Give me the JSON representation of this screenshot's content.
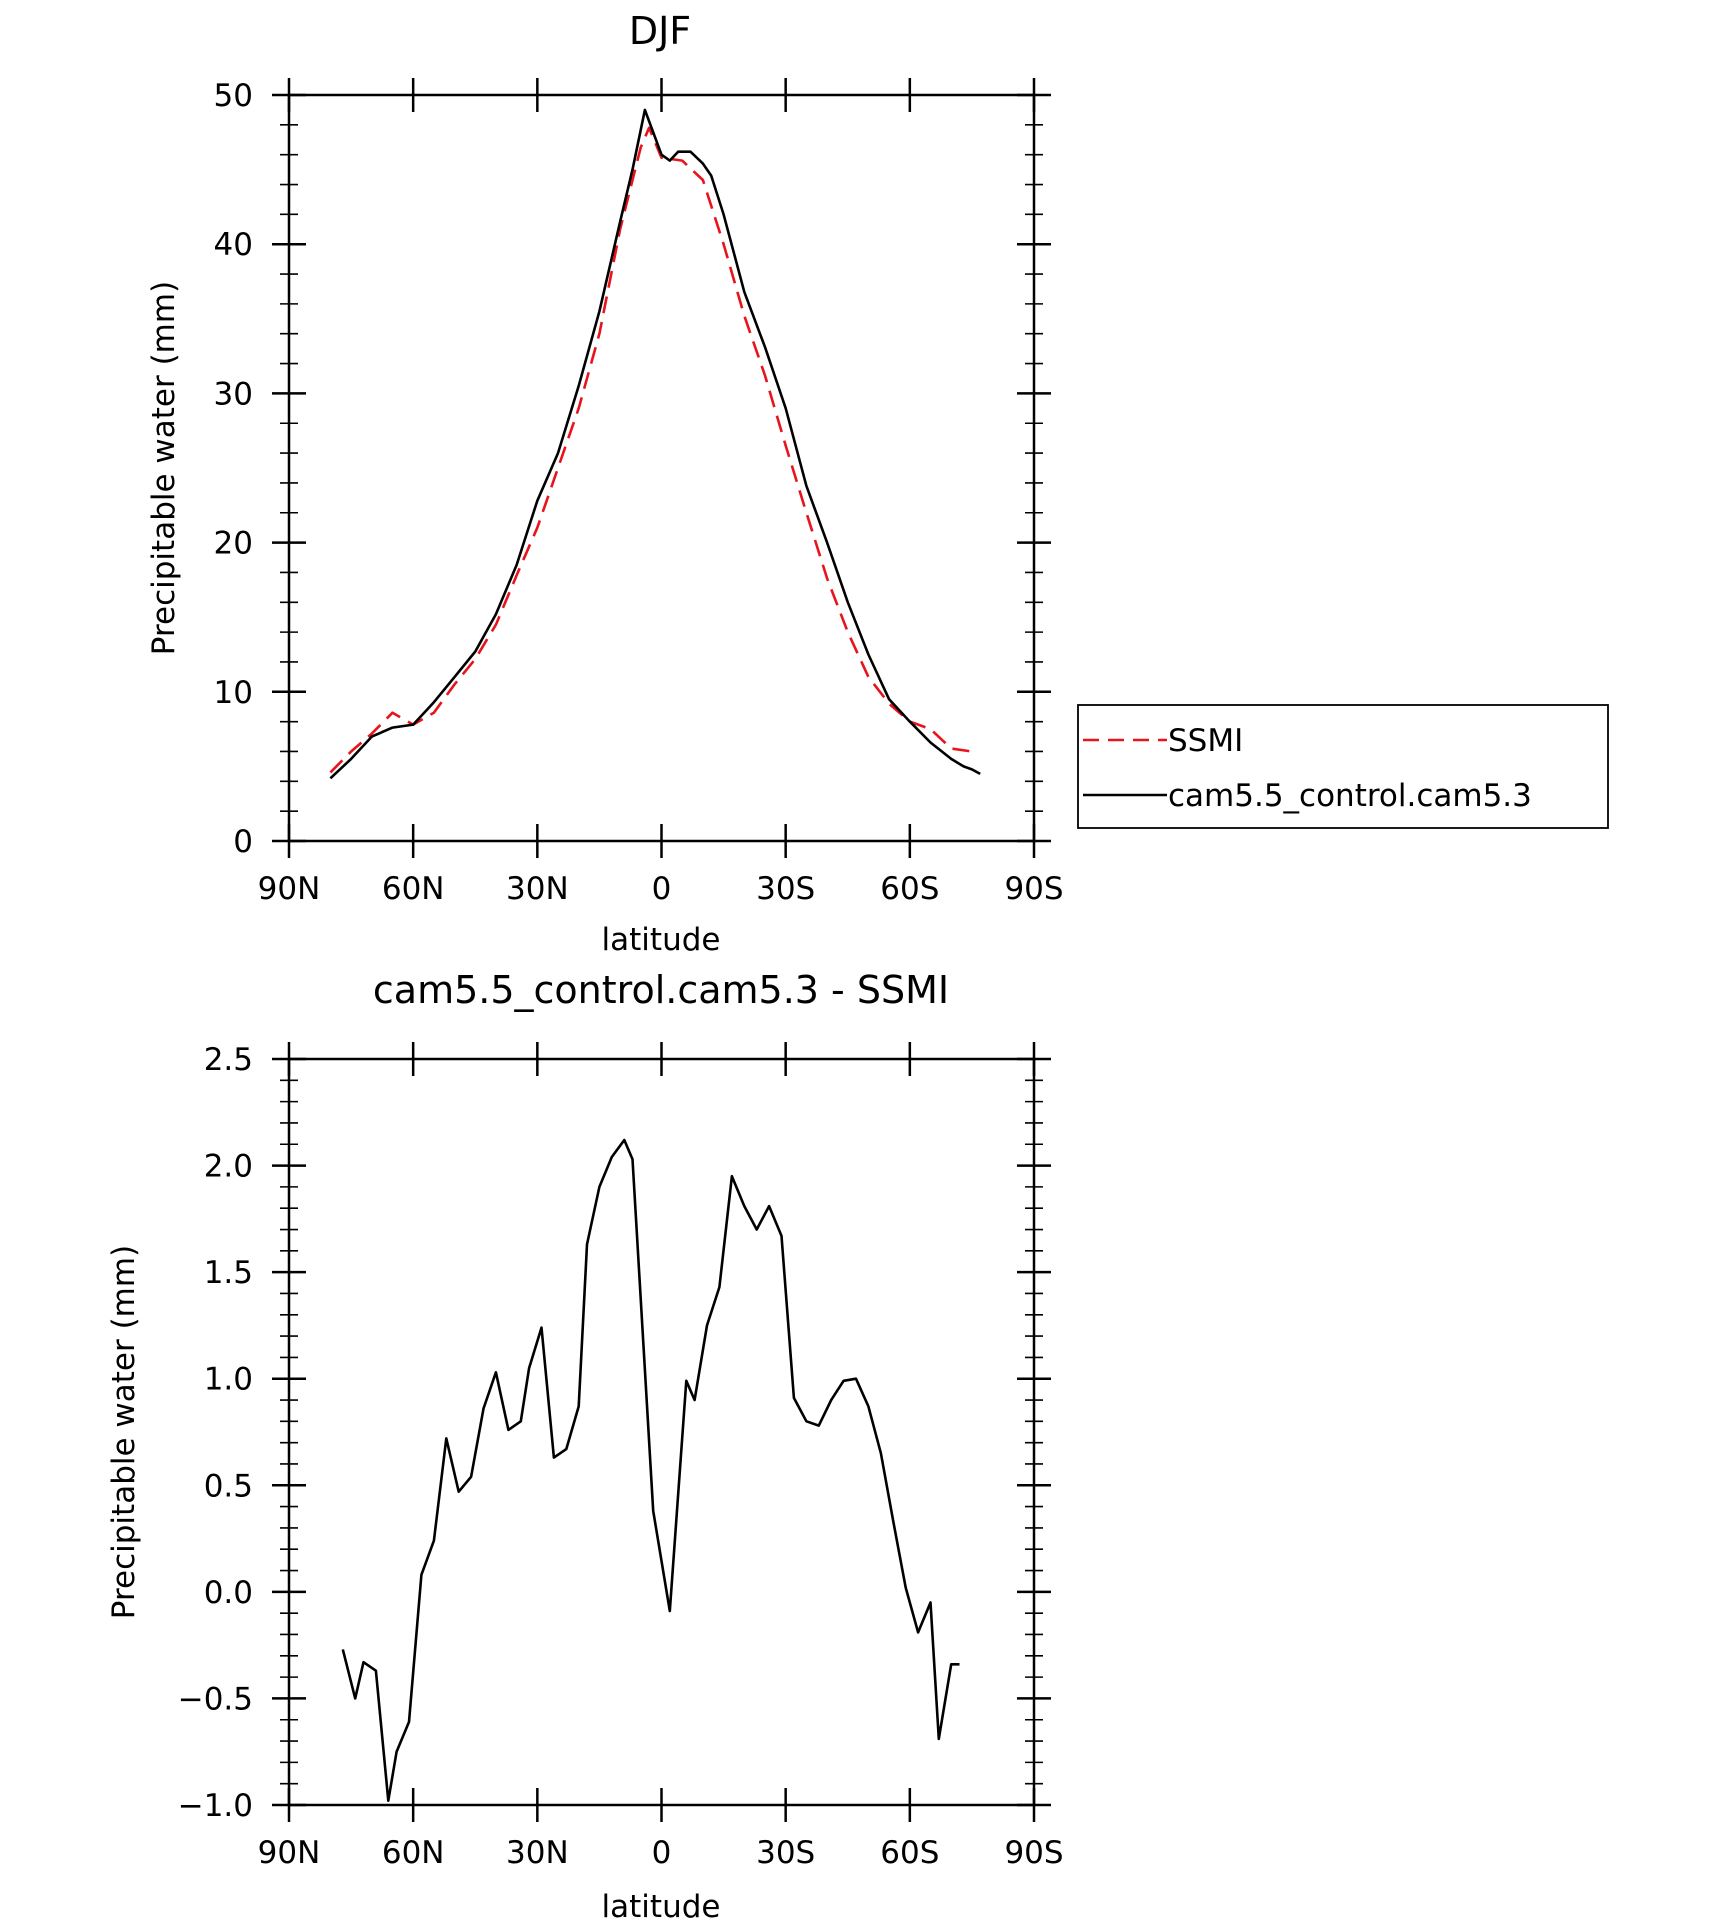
{
  "chart_data": [
    {
      "type": "line",
      "title": "DJF",
      "xlabel": "latitude",
      "ylabel": "Precipitable water (mm)",
      "xlim": [
        90,
        -90
      ],
      "ylim": [
        0,
        50
      ],
      "x_ticks": [
        90,
        60,
        30,
        0,
        -30,
        -60,
        -90
      ],
      "x_tick_labels": [
        "90N",
        "60N",
        "30N",
        "0",
        "30S",
        "60S",
        "90S"
      ],
      "y_ticks": [
        0,
        10,
        20,
        30,
        40,
        50
      ],
      "y_tick_labels": [
        "0",
        "10",
        "20",
        "30",
        "40",
        "50"
      ],
      "legend": {
        "placement": "right",
        "entries": [
          "SSMI",
          "cam5.5_control.cam5.3"
        ]
      },
      "series": [
        {
          "name": "SSMI",
          "color": "#e8141c",
          "dash": "dashed",
          "x": [
            80,
            75,
            70,
            65,
            60,
            55,
            50,
            45,
            40,
            35,
            30,
            25,
            20,
            15,
            10,
            5,
            3,
            0,
            -5,
            -10,
            -15,
            -20,
            -25,
            -30,
            -35,
            -40,
            -45,
            -50,
            -55,
            -60,
            -65,
            -70,
            -75
          ],
          "y": [
            4.6,
            6.0,
            7.2,
            8.6,
            7.8,
            8.6,
            10.5,
            12.2,
            14.5,
            17.8,
            21.0,
            25.0,
            29.0,
            34.0,
            41.0,
            46.5,
            47.8,
            45.8,
            45.6,
            44.3,
            40.0,
            35.2,
            31.2,
            26.5,
            22.0,
            17.6,
            14.0,
            11.0,
            9.2,
            8.0,
            7.5,
            6.2,
            6.0
          ]
        },
        {
          "name": "cam5.5_control.cam5.3",
          "color": "#000000",
          "dash": "solid",
          "x": [
            80,
            75,
            70,
            65,
            60,
            55,
            50,
            45,
            40,
            35,
            30,
            25,
            20,
            15,
            10,
            7,
            4,
            0,
            -2,
            -4,
            -7,
            -10,
            -12,
            -15,
            -20,
            -25,
            -30,
            -35,
            -40,
            -45,
            -50,
            -55,
            -60,
            -65,
            -70,
            -73,
            -75,
            -77
          ],
          "y": [
            4.2,
            5.5,
            7.0,
            7.6,
            7.8,
            9.3,
            11.0,
            12.7,
            15.2,
            18.5,
            22.8,
            26.0,
            30.5,
            35.5,
            41.5,
            45.0,
            49.0,
            46.0,
            45.6,
            46.2,
            46.2,
            45.4,
            44.6,
            42.0,
            36.8,
            33.1,
            29.0,
            23.8,
            20.0,
            16.0,
            12.5,
            9.5,
            8.0,
            6.6,
            5.5,
            5.0,
            4.8,
            4.5
          ]
        }
      ]
    },
    {
      "type": "line",
      "title": "cam5.5_control.cam5.3 - SSMI",
      "xlabel": "latitude",
      "ylabel": "Precipitable water (mm)",
      "xlim": [
        90,
        -90
      ],
      "ylim": [
        -1.0,
        2.5
      ],
      "x_ticks": [
        90,
        60,
        30,
        0,
        -30,
        -60,
        -90
      ],
      "x_tick_labels": [
        "90N",
        "60N",
        "30N",
        "0",
        "30S",
        "60S",
        "90S"
      ],
      "y_ticks": [
        -1.0,
        -0.5,
        0.0,
        0.5,
        1.0,
        1.5,
        2.0,
        2.5
      ],
      "y_tick_labels": [
        "−1.0",
        "−0.5",
        "0.0",
        "0.5",
        "1.0",
        "1.5",
        "2.0",
        "2.5"
      ],
      "series": [
        {
          "color": "#000000",
          "dash": "solid",
          "x": [
            77,
            74,
            72,
            69,
            66,
            64,
            61,
            58,
            55,
            52,
            49,
            46,
            43,
            40,
            37,
            34,
            32,
            29,
            26,
            23,
            20,
            18,
            15,
            12,
            9,
            7,
            2,
            -2,
            -6,
            -8,
            -11,
            -14,
            -17,
            -20,
            -23,
            -26,
            -29,
            -32,
            -35,
            -38,
            -41,
            -44,
            -47,
            -50,
            -53,
            -56,
            -59,
            -62,
            -65,
            -67,
            -70,
            -72
          ],
          "y": [
            -0.27,
            -0.5,
            -0.33,
            -0.37,
            -0.98,
            -0.75,
            -0.61,
            0.08,
            0.24,
            0.72,
            0.47,
            0.54,
            0.86,
            1.03,
            0.76,
            0.8,
            1.05,
            1.24,
            0.63,
            0.67,
            0.87,
            1.63,
            1.9,
            2.04,
            2.12,
            2.03,
            0.38,
            -0.09,
            0.99,
            0.9,
            1.25,
            1.43,
            1.95,
            1.81,
            1.7,
            1.81,
            1.67,
            0.91,
            0.8,
            0.78,
            0.9,
            0.99,
            1.0,
            0.87,
            0.65,
            0.33,
            0.02,
            -0.19,
            -0.05,
            -0.69,
            -0.34,
            -0.34
          ]
        }
      ]
    }
  ]
}
